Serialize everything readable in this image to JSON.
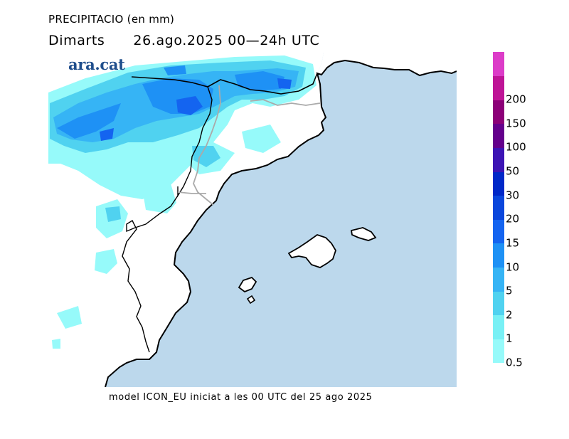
{
  "header": {
    "title": "PRECIPITACIO (en mm)",
    "day": "Dimarts",
    "date_range": "26.ago.2025 00—24h UTC"
  },
  "logo": {
    "text": "ara.cat"
  },
  "footer": {
    "text": "model ICON_EU iniciat a les 00 UTC del 25 ago 2025"
  },
  "legend": {
    "labels": [
      "0.5",
      "1",
      "2",
      "5",
      "10",
      "15",
      "20",
      "30",
      "50",
      "100",
      "150",
      "200"
    ],
    "colors": [
      "#96fafa",
      "#78f0f5",
      "#50d2f0",
      "#36b4f5",
      "#1e91f5",
      "#1464f0",
      "#0a46dc",
      "#0028c8",
      "#3c14b4",
      "#64008c",
      "#8c0078",
      "#be1496",
      "#dc3cc8"
    ]
  },
  "colors": {
    "sea": "#bcd8ec",
    "land": "#ffffff",
    "coast": "#000000",
    "border": "#aaaaaa"
  }
}
